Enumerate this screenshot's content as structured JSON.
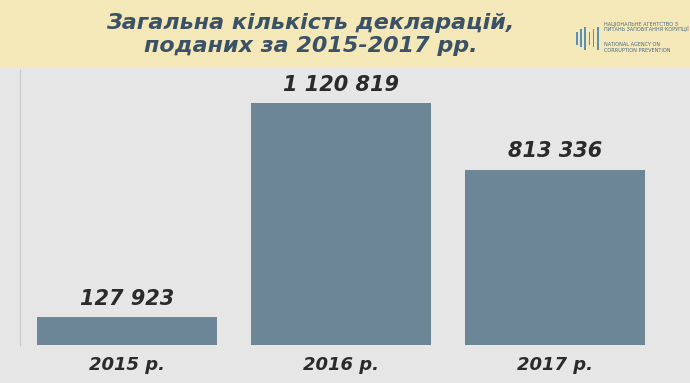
{
  "chart_data": {
    "type": "bar",
    "title": "Загальна кількість декларацій,\nподаних за 2015-2017 рр.",
    "annotations": [
      "НАЦІОНАЛЬНЕ АГЕНТСТВО З ПИТАНЬ ЗАПОБІГАННЯ КОРУПЦІЇ",
      "NATIONAL AGENCY ON CORRUPTION PREVENTION"
    ],
    "categories": [
      "2015 р.",
      "2016 р.",
      "2017 р."
    ],
    "values": [
      127923,
      1120819,
      813336
    ],
    "value_labels": [
      "127 923",
      "1 120 819",
      "813 336"
    ],
    "color": "#6d8696",
    "ylim": [
      0,
      1275000
    ],
    "yticks": [],
    "grid": false,
    "data_labels": true,
    "tick_labels": "x"
  }
}
